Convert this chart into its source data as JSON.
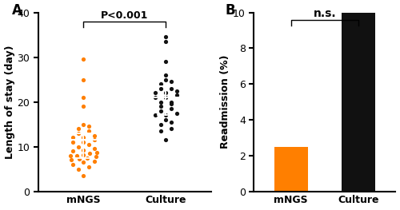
{
  "panel_A": {
    "label": "A",
    "ylabel": "Length of stay (day)",
    "xtick_labels": [
      "mNGS",
      "Culture"
    ],
    "ylim": [
      0,
      40
    ],
    "yticks": [
      0,
      10,
      20,
      30,
      40
    ],
    "significance_text": "P<0.001",
    "mNGS_color": "#FF7F00",
    "culture_color": "#111111",
    "mNGS_median": 11.5,
    "mNGS_q1": 7.5,
    "mNGS_q3": 13.0,
    "culture_median": 21.0,
    "culture_q1": 17.0,
    "culture_q3": 23.5,
    "mNGS_points": [
      3.5,
      5.0,
      5.5,
      6.0,
      6.5,
      6.8,
      7.0,
      7.2,
      7.5,
      7.8,
      8.0,
      8.0,
      8.2,
      8.5,
      8.7,
      9.0,
      9.2,
      9.5,
      10.0,
      10.5,
      11.0,
      11.0,
      11.5,
      12.0,
      12.0,
      12.5,
      13.0,
      13.5,
      14.0,
      14.5,
      15.0,
      19.0,
      21.0,
      25.0,
      29.5
    ],
    "culture_points": [
      11.5,
      13.5,
      14.0,
      15.0,
      15.5,
      16.0,
      17.0,
      17.0,
      17.5,
      18.0,
      18.5,
      19.0,
      19.5,
      20.0,
      20.0,
      21.0,
      21.0,
      21.5,
      22.0,
      22.0,
      22.5,
      23.0,
      23.0,
      24.0,
      24.5,
      25.0,
      26.0,
      29.0,
      33.5,
      34.5
    ]
  },
  "panel_B": {
    "label": "B",
    "ylabel": "Readmission (%)",
    "xtick_labels": [
      "mNGS",
      "Culture"
    ],
    "ylim": [
      0,
      10
    ],
    "yticks": [
      0,
      2,
      4,
      6,
      8,
      10
    ],
    "significance_text": "n.s.",
    "mNGS_value": 2.5,
    "culture_value": 10.0,
    "mNGS_color": "#FF7F00",
    "culture_color": "#111111"
  },
  "background_color": "#ffffff",
  "tick_fontsize": 8,
  "label_fontsize": 9,
  "panel_label_fontsize": 12
}
